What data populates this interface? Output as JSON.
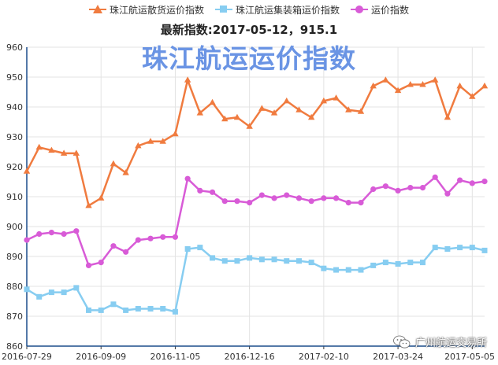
{
  "legend": [
    {
      "name": "珠江航运散货运价指数",
      "color": "#f07b3f",
      "marker": "triangle"
    },
    {
      "name": "珠江航运集装箱运价指数",
      "color": "#87cdf1",
      "marker": "square"
    },
    {
      "name": "运价指数",
      "color": "#d85bd7",
      "marker": "circle"
    }
  ],
  "subtitle": "最新指数:2017-05-12，915.1",
  "overlay_title": "珠江航运运价指数",
  "footer_mark": "广州航运交易所",
  "chart_data": {
    "type": "line",
    "ylim": [
      860,
      960
    ],
    "yticks": [
      860,
      870,
      880,
      890,
      900,
      910,
      920,
      930,
      940,
      950,
      960
    ],
    "x_tick_labels": [
      "2016-07-29",
      "2016-09-09",
      "2016-11-05",
      "2016-12-16",
      "2017-02-10",
      "2017-03-24",
      "2017-05-05"
    ],
    "x_tick_indices": [
      0,
      6,
      12,
      18,
      24,
      30,
      36
    ],
    "grid": true,
    "legend_position": "top",
    "series": [
      {
        "name": "珠江航运散货运价指数",
        "color": "#f07b3f",
        "marker": "triangle",
        "values": [
          918.5,
          926.5,
          925.5,
          924.5,
          924.5,
          907.0,
          909.5,
          921.0,
          918.0,
          927.0,
          928.5,
          928.5,
          931.0,
          949.0,
          938.0,
          941.5,
          936.0,
          936.5,
          933.5,
          939.5,
          938.0,
          942.0,
          939.0,
          936.5,
          942.0,
          943.0,
          939.0,
          938.5,
          947.0,
          949.0,
          945.5,
          947.5,
          947.5,
          949.0,
          936.5,
          947.0,
          943.5,
          947.0
        ]
      },
      {
        "name": "珠江航运集装箱运价指数",
        "color": "#87cdf1",
        "marker": "square",
        "values": [
          879.0,
          876.5,
          878.0,
          878.0,
          879.5,
          872.0,
          872.0,
          874.0,
          872.0,
          872.5,
          872.5,
          872.5,
          871.5,
          892.5,
          893.0,
          889.5,
          888.5,
          888.5,
          889.5,
          889.0,
          889.0,
          888.5,
          888.5,
          888.0,
          886.0,
          885.5,
          885.5,
          885.5,
          887.0,
          888.0,
          887.5,
          888.0,
          888.0,
          893.0,
          892.5,
          893.0,
          893.0,
          892.0
        ]
      },
      {
        "name": "运价指数",
        "color": "#d85bd7",
        "marker": "circle",
        "values": [
          895.5,
          897.5,
          898.0,
          897.5,
          898.5,
          887.0,
          888.0,
          893.5,
          891.5,
          895.5,
          896.0,
          896.5,
          896.5,
          916.0,
          912.0,
          911.5,
          908.5,
          908.5,
          908.0,
          910.5,
          909.5,
          910.5,
          909.5,
          908.5,
          909.5,
          909.5,
          908.0,
          908.0,
          912.5,
          913.5,
          912.0,
          913.0,
          913.0,
          916.5,
          911.0,
          915.5,
          914.5,
          915.1
        ]
      }
    ]
  }
}
